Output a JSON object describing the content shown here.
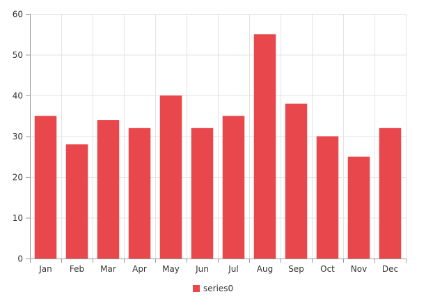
{
  "chart_data": {
    "type": "bar",
    "categories": [
      "Jan",
      "Feb",
      "Mar",
      "Apr",
      "May",
      "Jun",
      "Jul",
      "Aug",
      "Sep",
      "Oct",
      "Nov",
      "Dec"
    ],
    "series": [
      {
        "name": "series0",
        "values": [
          35,
          28,
          34,
          32,
          40,
          32,
          35,
          55,
          38,
          30,
          25,
          32
        ]
      }
    ],
    "ylim": [
      0,
      60
    ],
    "yticks": [
      0,
      10,
      20,
      30,
      40,
      50,
      60
    ],
    "grid": true,
    "legend_position": "bottom-center",
    "bar_color": "#e8474b"
  }
}
